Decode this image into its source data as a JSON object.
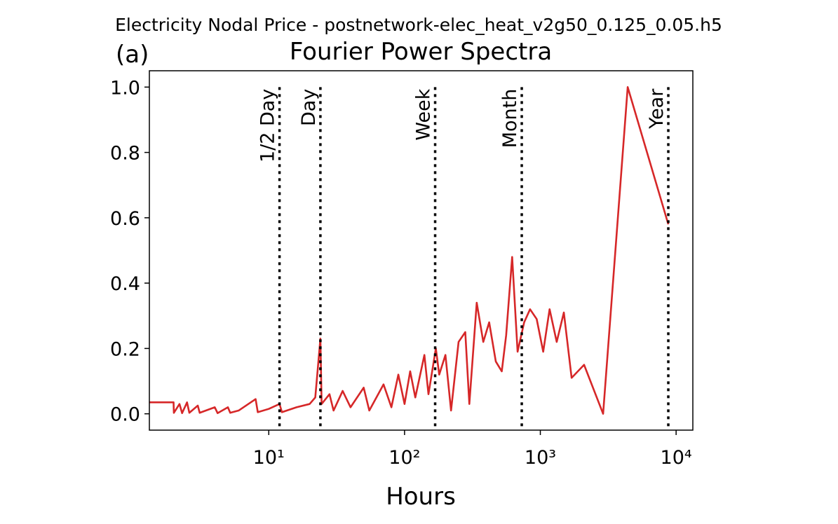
{
  "chart_data": {
    "type": "line",
    "suptitle": "Electricity Nodal Price - postnetwork-elec_heat_v2g50_0.125_0.05.h5",
    "title": "Fourier Power Spectra",
    "panel_label": "(a)",
    "xlabel": "Hours",
    "xscale": "log",
    "grid": false,
    "color": "#d62728",
    "x": [
      1.32,
      1.99,
      2.0,
      2.2,
      2.3,
      2.5,
      2.6,
      3.0,
      3.1,
      4.0,
      4.2,
      5,
      5.2,
      6,
      8,
      8.3,
      10,
      12,
      12.5,
      16,
      20,
      22,
      24,
      24.5,
      28,
      30,
      35,
      40,
      50,
      55,
      70,
      80,
      90,
      100,
      110,
      120,
      140,
      150,
      170,
      180,
      200,
      220,
      250,
      280,
      300,
      340,
      380,
      420,
      470,
      520,
      560,
      620,
      680,
      760,
      840,
      940,
      1050,
      1170,
      1320,
      1490,
      1700,
      2100,
      2900,
      4400,
      8760
    ],
    "values": [
      0.035,
      0.035,
      0.003,
      0.03,
      0.002,
      0.035,
      0.003,
      0.025,
      0.003,
      0.02,
      0.002,
      0.02,
      0.003,
      0.01,
      0.045,
      0.005,
      0.015,
      0.03,
      0.005,
      0.02,
      0.03,
      0.05,
      0.23,
      0.03,
      0.06,
      0.01,
      0.07,
      0.02,
      0.08,
      0.01,
      0.09,
      0.02,
      0.12,
      0.03,
      0.13,
      0.05,
      0.18,
      0.06,
      0.2,
      0.12,
      0.18,
      0.01,
      0.22,
      0.25,
      0.03,
      0.34,
      0.22,
      0.28,
      0.16,
      0.13,
      0.24,
      0.48,
      0.19,
      0.28,
      0.32,
      0.29,
      0.19,
      0.32,
      0.22,
      0.31,
      0.11,
      0.15,
      0.0,
      1.0,
      0.58
    ],
    "xlim": [
      1.32,
      13280
    ],
    "ylim": [
      -0.05,
      1.05
    ],
    "xticks": [
      {
        "value": 10,
        "label": "10¹"
      },
      {
        "value": 100,
        "label": "10²"
      },
      {
        "value": 1000,
        "label": "10³"
      },
      {
        "value": 10000,
        "label": "10⁴"
      }
    ],
    "yticks": [
      {
        "value": 0,
        "label": "0.0"
      },
      0.2,
      0.4,
      0.6,
      0.8,
      {
        "value": 1,
        "label": "1.0"
      }
    ],
    "annotations": [
      {
        "x": 12,
        "label": "1/2 Day"
      },
      {
        "x": 24,
        "label": "Day"
      },
      {
        "x": 168,
        "label": "Week"
      },
      {
        "x": 730,
        "label": "Month"
      },
      {
        "x": 8760,
        "label": "Year"
      }
    ]
  }
}
